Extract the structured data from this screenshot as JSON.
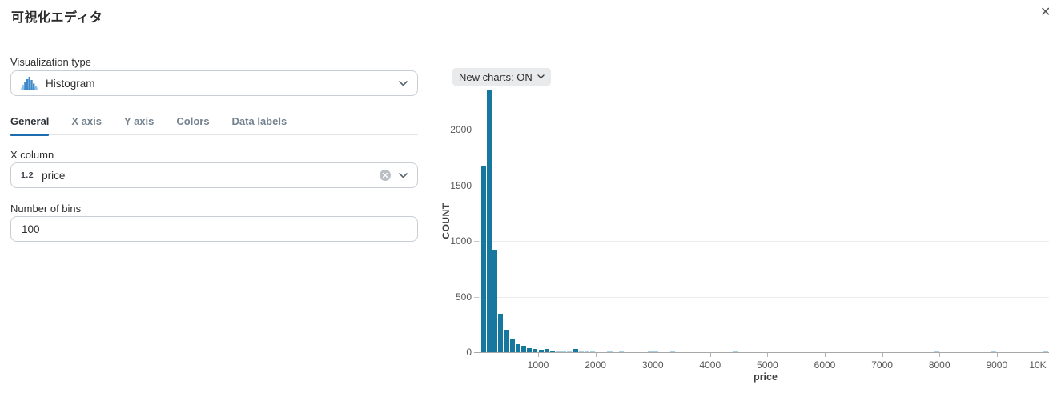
{
  "header": {
    "title": "可視化エディタ",
    "close": "✕"
  },
  "panel": {
    "viz_type": {
      "label": "Visualization type",
      "value": "Histogram",
      "icon": "histogram-icon"
    },
    "tabs": [
      {
        "label": "General",
        "active": true
      },
      {
        "label": "X axis",
        "active": false
      },
      {
        "label": "Y axis",
        "active": false
      },
      {
        "label": "Colors",
        "active": false
      },
      {
        "label": "Data labels",
        "active": false
      }
    ],
    "x_column": {
      "label": "X column",
      "type_badge": "1.2",
      "value": "price"
    },
    "bins": {
      "label": "Number of bins",
      "value": "100"
    }
  },
  "chart": {
    "badge_label": "New charts: ON",
    "colors": {
      "bar": "#16789f",
      "bar_faint": "#a9cfe0",
      "accent": "#1b6db0"
    }
  },
  "chart_data": {
    "type": "bar",
    "variant": "histogram",
    "title": "",
    "xlabel": "price",
    "ylabel": "COUNT",
    "xlim": [
      0,
      10000
    ],
    "ylim": [
      0,
      2400
    ],
    "grid": true,
    "bin_width": 100,
    "y_ticks": [
      0,
      500,
      1000,
      1500,
      2000
    ],
    "x_ticks": [
      {
        "value": 1000,
        "label": "1000"
      },
      {
        "value": 2000,
        "label": "2000"
      },
      {
        "value": 3000,
        "label": "3000"
      },
      {
        "value": 4000,
        "label": "4000"
      },
      {
        "value": 5000,
        "label": "5000"
      },
      {
        "value": 6000,
        "label": "6000"
      },
      {
        "value": 7000,
        "label": "7000"
      },
      {
        "value": 8000,
        "label": "8000"
      },
      {
        "value": 9000,
        "label": "9000"
      },
      {
        "value": 10000,
        "label": "10K"
      }
    ],
    "bins": [
      [
        0,
        1670
      ],
      [
        100,
        2360
      ],
      [
        200,
        920
      ],
      [
        300,
        345
      ],
      [
        400,
        200
      ],
      [
        500,
        115
      ],
      [
        600,
        72
      ],
      [
        700,
        55
      ],
      [
        800,
        36
      ],
      [
        900,
        29
      ],
      [
        1000,
        22
      ],
      [
        1100,
        26
      ],
      [
        1200,
        14
      ],
      [
        1300,
        9
      ],
      [
        1400,
        7
      ],
      [
        1500,
        5
      ],
      [
        1600,
        28
      ],
      [
        1700,
        8
      ],
      [
        1800,
        3
      ],
      [
        1900,
        2
      ],
      [
        2200,
        5
      ],
      [
        2400,
        4
      ],
      [
        2900,
        3
      ],
      [
        3000,
        3
      ],
      [
        3300,
        3
      ],
      [
        4400,
        3
      ],
      [
        7900,
        4
      ],
      [
        8900,
        3
      ],
      [
        9800,
        4
      ]
    ]
  }
}
